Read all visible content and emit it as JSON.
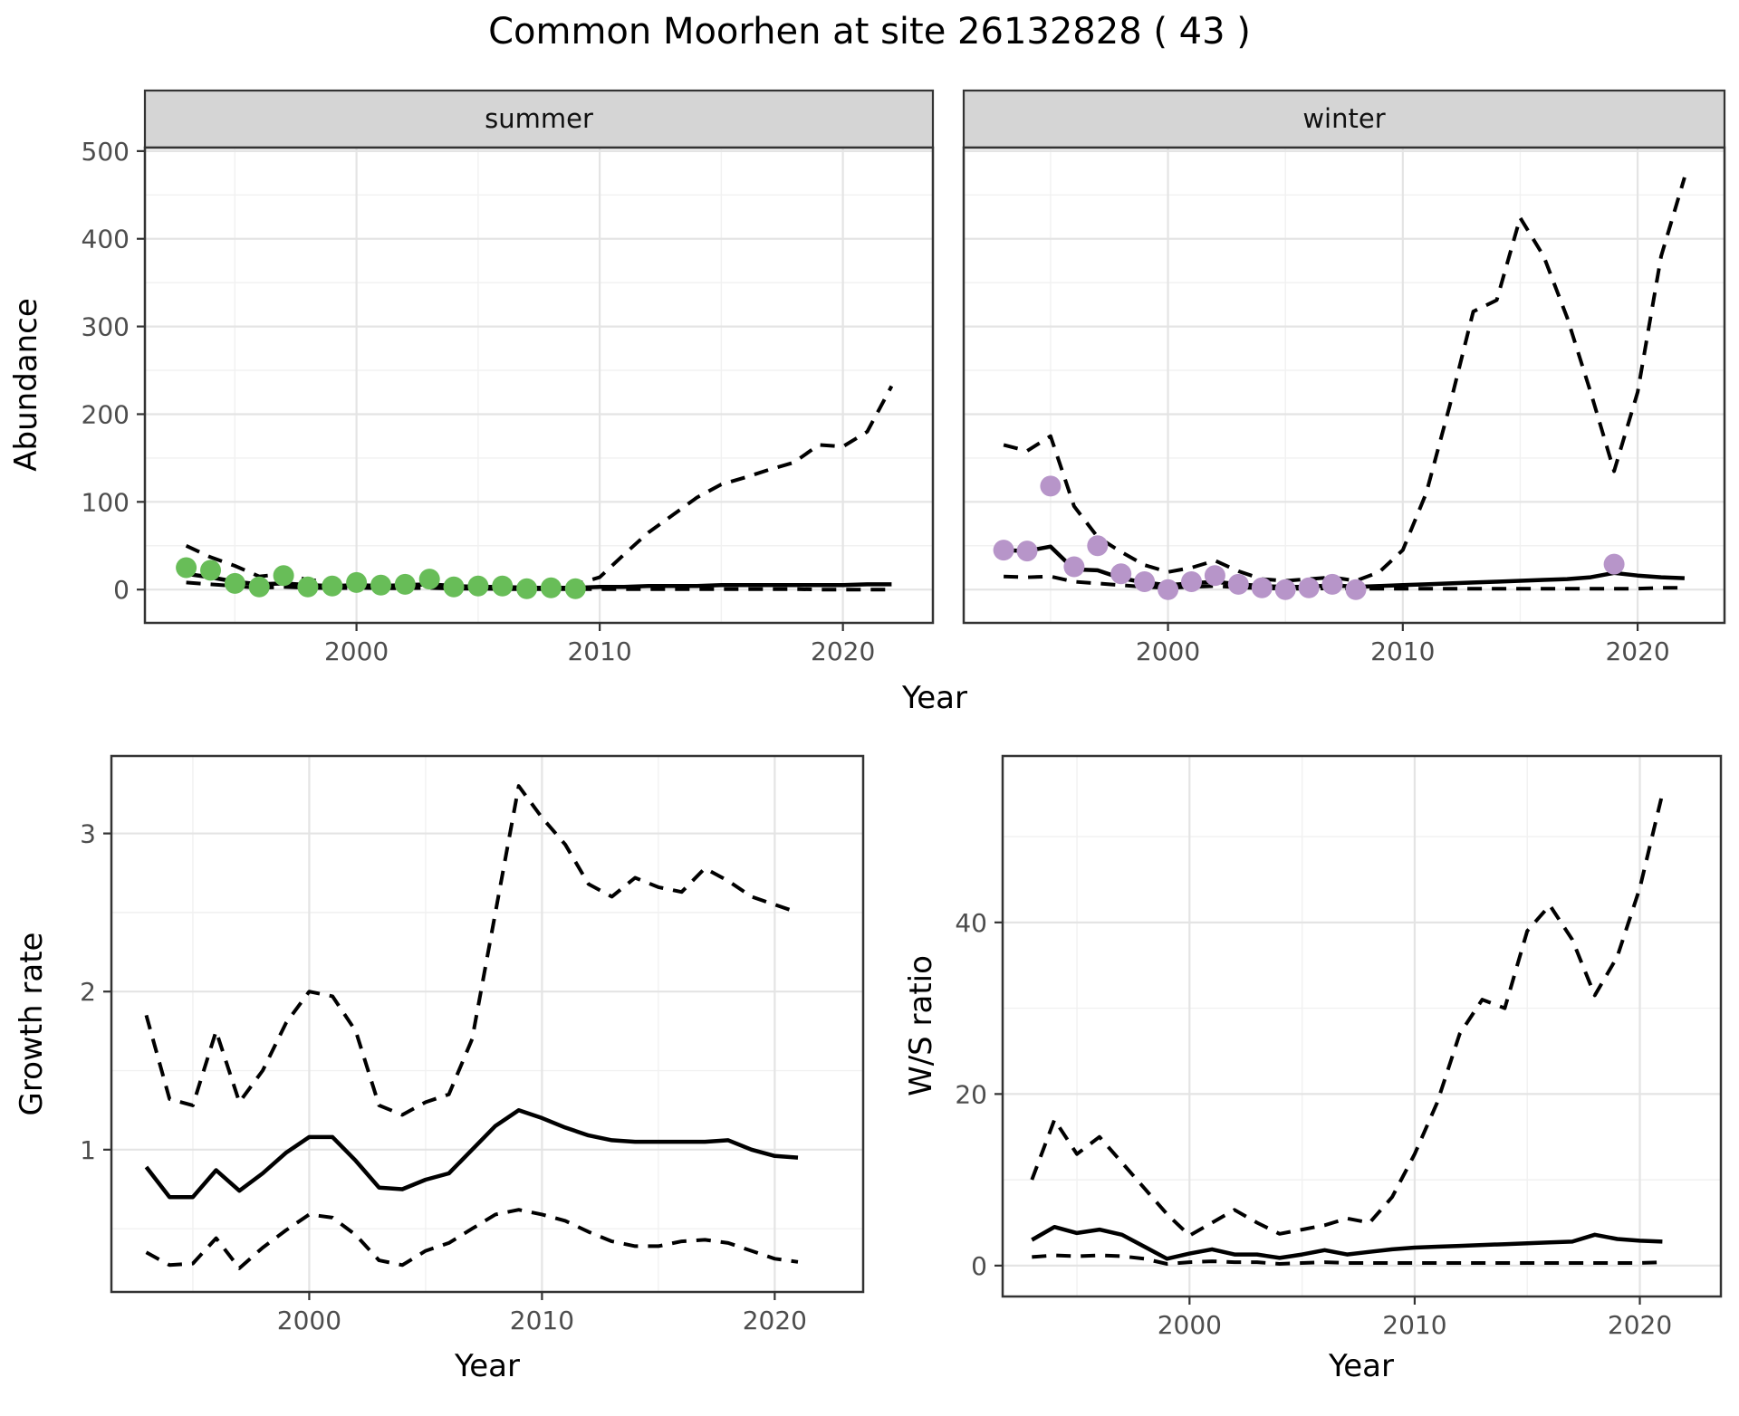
{
  "title": "Common Moorhen at site 26132828 ( 43 )",
  "colors": {
    "summer_points": "#68bd58",
    "winter_points": "#b795c9",
    "line": "#000000",
    "strip_fill": "#d5d5d5",
    "grid_major": "#e4e4e4",
    "grid_minor": "#f1f1f1",
    "axis_text": "#4d4d4d",
    "panel_border": "#333333"
  },
  "chart_data": [
    {
      "id": "summer",
      "type": "line",
      "facet_label": "summer",
      "xlabel": "Year",
      "ylabel": "Abundance",
      "xlim": [
        1991.3,
        2023.7
      ],
      "ylim": [
        -38,
        504
      ],
      "x_ticks": [
        2000,
        2010,
        2020
      ],
      "x_minor": [
        1995,
        2005,
        2015
      ],
      "y_ticks": [
        0,
        100,
        200,
        300,
        400,
        500
      ],
      "y_minor": [
        50,
        150,
        250,
        350,
        450
      ],
      "show_y_labels": true,
      "grid": true,
      "legend": "none",
      "points": {
        "color_key": "summer_points",
        "years": [
          1993,
          1994,
          1995,
          1996,
          1997,
          1998,
          1999,
          2000,
          2001,
          2002,
          2003,
          2004,
          2005,
          2006,
          2007,
          2008,
          2009
        ],
        "values": [
          25,
          22,
          7,
          3,
          16,
          3,
          4,
          8,
          5,
          6,
          12,
          3,
          4,
          4,
          1,
          2,
          1
        ]
      },
      "series": [
        {
          "name": "mean",
          "style": "solid",
          "years": [
            1993,
            1994,
            1995,
            1996,
            1997,
            1998,
            1999,
            2000,
            2001,
            2002,
            2003,
            2004,
            2005,
            2006,
            2007,
            2008,
            2009,
            2010,
            2011,
            2012,
            2013,
            2014,
            2015,
            2016,
            2017,
            2018,
            2019,
            2020,
            2021,
            2022
          ],
          "values": [
            18,
            14,
            9,
            6,
            7,
            5,
            4,
            5,
            4,
            5,
            6,
            4,
            3,
            3,
            2,
            2,
            2,
            3,
            3,
            4,
            4,
            4,
            5,
            5,
            5,
            5,
            5,
            5,
            6,
            6
          ]
        },
        {
          "name": "upper_ci",
          "style": "dashed",
          "years": [
            1993,
            1994,
            1995,
            1996,
            1997,
            1998,
            1999,
            2000,
            2001,
            2002,
            2003,
            2004,
            2005,
            2006,
            2007,
            2008,
            2009,
            2010,
            2011,
            2012,
            2013,
            2014,
            2015,
            2016,
            2017,
            2018,
            2019,
            2020,
            2021,
            2022
          ],
          "values": [
            50,
            37,
            27,
            15,
            18,
            11,
            9,
            12,
            9,
            10,
            15,
            8,
            7,
            6,
            5,
            5,
            6,
            14,
            40,
            65,
            85,
            105,
            120,
            128,
            137,
            145,
            165,
            163,
            180,
            232
          ]
        },
        {
          "name": "lower_ci",
          "style": "dashed",
          "years": [
            1993,
            1994,
            1995,
            1996,
            1997,
            1998,
            1999,
            2000,
            2001,
            2002,
            2003,
            2004,
            2005,
            2006,
            2007,
            2008,
            2009,
            2010,
            2011,
            2012,
            2013,
            2014,
            2015,
            2016,
            2017,
            2018,
            2019,
            2020,
            2021,
            2022
          ],
          "values": [
            8,
            6,
            4,
            2,
            3,
            2,
            1.5,
            2,
            1.5,
            1.5,
            2,
            1,
            1,
            0.5,
            0.5,
            0.5,
            0.5,
            0.5,
            0.5,
            0.5,
            0.5,
            0.5,
            0.5,
            0.5,
            0.5,
            0.5,
            0,
            0,
            0,
            0
          ]
        }
      ]
    },
    {
      "id": "winter",
      "type": "line",
      "facet_label": "winter",
      "xlabel": "",
      "ylabel": "",
      "xlim": [
        1991.3,
        2023.7
      ],
      "ylim": [
        -38,
        504
      ],
      "x_ticks": [
        2000,
        2010,
        2020
      ],
      "x_minor": [
        1995,
        2005,
        2015
      ],
      "y_ticks": [
        0,
        100,
        200,
        300,
        400,
        500
      ],
      "y_minor": [
        50,
        150,
        250,
        350,
        450
      ],
      "show_y_labels": false,
      "grid": true,
      "legend": "none",
      "points": {
        "color_key": "winter_points",
        "years": [
          1993,
          1994,
          1995,
          1996,
          1997,
          1998,
          1999,
          2000,
          2001,
          2002,
          2003,
          2004,
          2005,
          2006,
          2007,
          2008,
          2019
        ],
        "values": [
          45,
          44,
          118,
          26,
          50,
          18,
          9,
          0,
          9,
          16,
          6,
          2,
          0,
          2,
          6,
          0,
          29
        ]
      },
      "series": [
        {
          "name": "mean",
          "style": "solid",
          "years": [
            1993,
            1994,
            1995,
            1996,
            1997,
            1998,
            1999,
            2000,
            2001,
            2002,
            2003,
            2004,
            2005,
            2006,
            2007,
            2008,
            2009,
            2010,
            2011,
            2012,
            2013,
            2014,
            2015,
            2016,
            2017,
            2018,
            2019,
            2020,
            2021,
            2022
          ],
          "values": [
            45,
            44,
            49,
            23,
            22,
            13,
            8,
            5,
            7,
            9,
            6,
            4,
            3,
            3,
            5,
            3,
            4,
            5,
            6,
            7,
            8,
            9,
            10,
            11,
            12,
            14,
            19,
            16,
            14,
            13
          ]
        },
        {
          "name": "upper_ci",
          "style": "dashed",
          "years": [
            1993,
            1994,
            1995,
            1996,
            1997,
            1998,
            1999,
            2000,
            2001,
            2002,
            2003,
            2004,
            2005,
            2006,
            2007,
            2008,
            2009,
            2010,
            2011,
            2012,
            2013,
            2014,
            2015,
            2016,
            2017,
            2018,
            2019,
            2020,
            2021,
            2022
          ],
          "values": [
            165,
            158,
            175,
            95,
            60,
            43,
            28,
            20,
            25,
            33,
            21,
            12,
            10,
            12,
            14,
            10,
            20,
            45,
            110,
            210,
            317,
            330,
            424,
            380,
            310,
            225,
            135,
            225,
            380,
            470
          ]
        },
        {
          "name": "lower_ci",
          "style": "dashed",
          "years": [
            1993,
            1994,
            1995,
            1996,
            1997,
            1998,
            1999,
            2000,
            2001,
            2002,
            2003,
            2004,
            2005,
            2006,
            2007,
            2008,
            2009,
            2010,
            2011,
            2012,
            2013,
            2014,
            2015,
            2016,
            2017,
            2018,
            2019,
            2020,
            2021,
            2022
          ],
          "values": [
            15,
            14,
            15,
            9,
            7,
            5,
            3,
            2,
            3,
            4,
            2.5,
            1.5,
            1,
            1,
            1.5,
            1,
            1,
            1,
            1,
            1,
            1,
            1,
            1,
            1,
            1,
            1,
            1,
            1,
            2,
            2
          ]
        }
      ]
    },
    {
      "id": "growth",
      "type": "line",
      "facet_label": "",
      "xlabel": "Year",
      "ylabel": "Growth rate",
      "xlim": [
        1991.5,
        2023.8
      ],
      "ylim": [
        0.1,
        3.49
      ],
      "x_ticks": [
        2000,
        2010,
        2020
      ],
      "x_minor": [
        1995,
        2005,
        2015
      ],
      "y_ticks": [
        1,
        2,
        3
      ],
      "y_minor": [
        0.5,
        1.5,
        2.5
      ],
      "show_y_labels": true,
      "grid": true,
      "legend": "none",
      "points": null,
      "series": [
        {
          "name": "mean",
          "style": "solid",
          "years": [
            1993,
            1994,
            1995,
            1996,
            1997,
            1998,
            1999,
            2000,
            2001,
            2002,
            2003,
            2004,
            2005,
            2006,
            2007,
            2008,
            2009,
            2010,
            2011,
            2012,
            2013,
            2014,
            2015,
            2016,
            2017,
            2018,
            2019,
            2020,
            2021
          ],
          "values": [
            0.89,
            0.7,
            0.7,
            0.87,
            0.74,
            0.85,
            0.98,
            1.08,
            1.08,
            0.93,
            0.76,
            0.75,
            0.81,
            0.85,
            1.0,
            1.15,
            1.25,
            1.2,
            1.14,
            1.09,
            1.06,
            1.05,
            1.05,
            1.05,
            1.05,
            1.06,
            1.0,
            0.96,
            0.95
          ]
        },
        {
          "name": "upper_ci",
          "style": "dashed",
          "years": [
            1993,
            1994,
            1995,
            1996,
            1997,
            1998,
            1999,
            2000,
            2001,
            2002,
            2003,
            2004,
            2005,
            2006,
            2007,
            2008,
            2009,
            2010,
            2011,
            2012,
            2013,
            2014,
            2015,
            2016,
            2017,
            2018,
            2019,
            2020,
            2021
          ],
          "values": [
            1.85,
            1.32,
            1.28,
            1.75,
            1.3,
            1.5,
            1.8,
            2.0,
            1.97,
            1.75,
            1.28,
            1.22,
            1.3,
            1.35,
            1.7,
            2.5,
            3.3,
            3.1,
            2.93,
            2.68,
            2.6,
            2.72,
            2.66,
            2.63,
            2.78,
            2.7,
            2.6,
            2.55,
            2.5
          ]
        },
        {
          "name": "lower_ci",
          "style": "dashed",
          "years": [
            1993,
            1994,
            1995,
            1996,
            1997,
            1998,
            1999,
            2000,
            2001,
            2002,
            2003,
            2004,
            2005,
            2006,
            2007,
            2008,
            2009,
            2010,
            2011,
            2012,
            2013,
            2014,
            2015,
            2016,
            2017,
            2018,
            2019,
            2020,
            2021
          ],
          "values": [
            0.35,
            0.27,
            0.28,
            0.44,
            0.25,
            0.38,
            0.49,
            0.59,
            0.57,
            0.46,
            0.3,
            0.27,
            0.36,
            0.41,
            0.5,
            0.59,
            0.62,
            0.59,
            0.55,
            0.48,
            0.42,
            0.39,
            0.39,
            0.42,
            0.43,
            0.41,
            0.36,
            0.31,
            0.29
          ]
        }
      ]
    },
    {
      "id": "ws",
      "type": "line",
      "facet_label": "",
      "xlabel": "Year",
      "ylabel": "W/S ratio",
      "xlim": [
        1991.7,
        2023.6
      ],
      "ylim": [
        -3.6,
        59.4
      ],
      "x_ticks": [
        2000,
        2010,
        2020
      ],
      "x_minor": [
        1995,
        2005,
        2015
      ],
      "y_ticks": [
        0,
        20,
        40
      ],
      "y_minor": [
        10,
        30,
        50
      ],
      "show_y_labels": true,
      "grid": true,
      "legend": "none",
      "points": null,
      "series": [
        {
          "name": "mean",
          "style": "solid",
          "years": [
            1993,
            1994,
            1995,
            1996,
            1997,
            1998,
            1999,
            2000,
            2001,
            2002,
            2003,
            2004,
            2005,
            2006,
            2007,
            2008,
            2009,
            2010,
            2011,
            2012,
            2013,
            2014,
            2015,
            2016,
            2017,
            2018,
            2019,
            2020,
            2021
          ],
          "values": [
            3.0,
            4.5,
            3.8,
            4.2,
            3.6,
            2.2,
            0.8,
            1.4,
            1.9,
            1.3,
            1.3,
            0.9,
            1.3,
            1.8,
            1.3,
            1.6,
            1.9,
            2.1,
            2.2,
            2.3,
            2.4,
            2.5,
            2.6,
            2.7,
            2.8,
            3.6,
            3.1,
            2.9,
            2.8
          ]
        },
        {
          "name": "upper_ci",
          "style": "dashed",
          "years": [
            1993,
            1994,
            1995,
            1996,
            1997,
            1998,
            1999,
            2000,
            2001,
            2002,
            2003,
            2004,
            2005,
            2006,
            2007,
            2008,
            2009,
            2010,
            2011,
            2012,
            2013,
            2014,
            2015,
            2016,
            2017,
            2018,
            2019,
            2020,
            2021
          ],
          "values": [
            10,
            17,
            13,
            15,
            12,
            9,
            6,
            3.5,
            5,
            6.5,
            5,
            3.7,
            4.2,
            4.7,
            5.5,
            5,
            8,
            13,
            19,
            27,
            31,
            30,
            39,
            42,
            38,
            31.5,
            36,
            44,
            55
          ]
        },
        {
          "name": "lower_ci",
          "style": "dashed",
          "years": [
            1993,
            1994,
            1995,
            1996,
            1997,
            1998,
            1999,
            2000,
            2001,
            2002,
            2003,
            2004,
            2005,
            2006,
            2007,
            2008,
            2009,
            2010,
            2011,
            2012,
            2013,
            2014,
            2015,
            2016,
            2017,
            2018,
            2019,
            2020,
            2021
          ],
          "values": [
            1.0,
            1.2,
            1.1,
            1.2,
            1.1,
            0.8,
            0.2,
            0.4,
            0.5,
            0.4,
            0.4,
            0.2,
            0.3,
            0.4,
            0.3,
            0.3,
            0.3,
            0.3,
            0.3,
            0.3,
            0.3,
            0.3,
            0.3,
            0.3,
            0.3,
            0.3,
            0.3,
            0.3,
            0.4
          ]
        }
      ]
    }
  ]
}
